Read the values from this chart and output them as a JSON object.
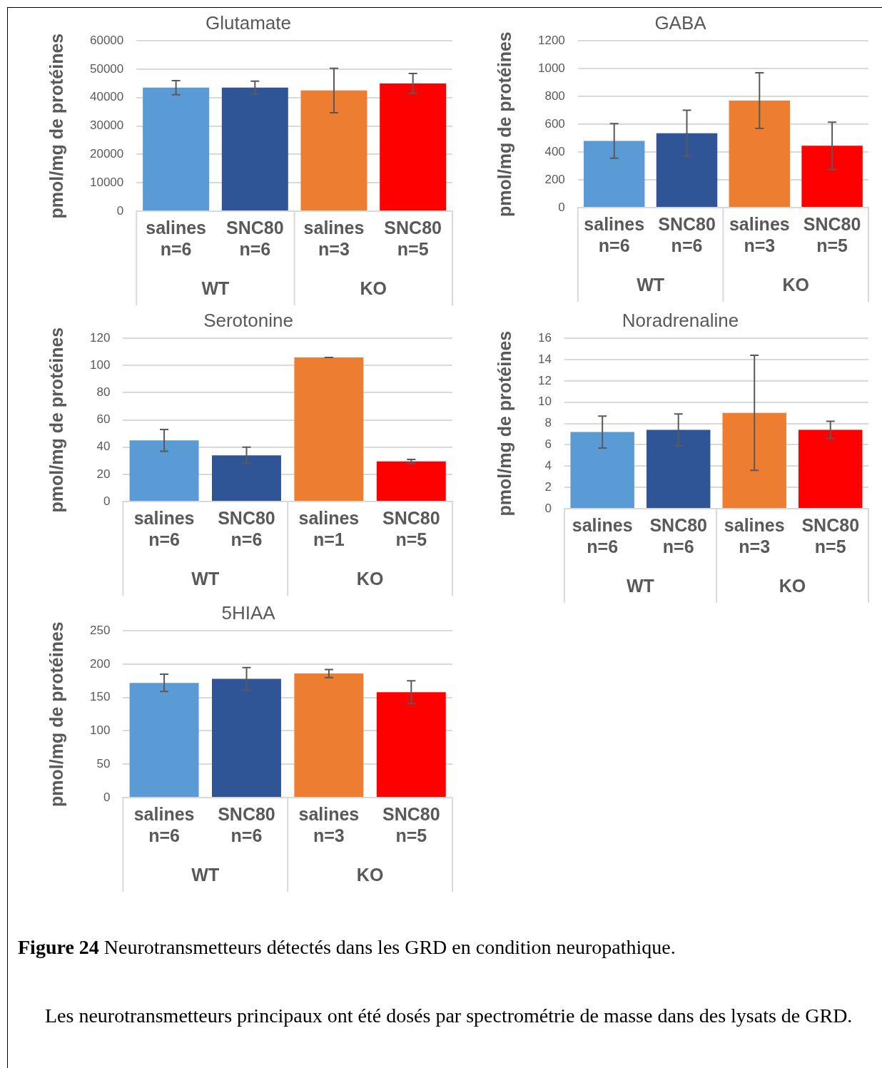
{
  "chart_data": [
    {
      "type": "bar",
      "title": "Glutamate",
      "ylabel": "pmol/mg de protéines",
      "categories": [
        "salines\nn=6",
        "SNC80\nn=6",
        "salines\nn=3",
        "SNC80\nn=5"
      ],
      "values": [
        43500,
        43500,
        42500,
        45000
      ],
      "errors": [
        2500,
        2300,
        7800,
        3500
      ],
      "colors": [
        "#5b9bd5",
        "#2f5597",
        "#ed7d31",
        "#ff0000"
      ],
      "ylim": [
        0,
        60000
      ],
      "yticks": [
        0,
        10000,
        20000,
        30000,
        40000,
        50000,
        60000
      ],
      "grid": "y",
      "annotations": [
        "WT",
        "KO"
      ]
    },
    {
      "type": "bar",
      "title": "GABA",
      "ylabel": "pmol/mg de protéines",
      "categories": [
        "salines\nn=6",
        "SNC80\nn=6",
        "salines\nn=3",
        "SNC80\nn=5"
      ],
      "values": [
        480,
        535,
        770,
        445
      ],
      "errors": [
        125,
        165,
        200,
        170
      ],
      "colors": [
        "#5b9bd5",
        "#2f5597",
        "#ed7d31",
        "#ff0000"
      ],
      "ylim": [
        0,
        1200
      ],
      "yticks": [
        0,
        200,
        400,
        600,
        800,
        1000,
        1200
      ],
      "grid": "y",
      "annotations": [
        "WT",
        "KO"
      ]
    },
    {
      "type": "bar",
      "title": "Serotonine",
      "ylabel": "pmol/mg de protéines",
      "categories": [
        "salines\nn=6",
        "SNC80\nn=6",
        "salines\nn=1",
        "SNC80\nn=5"
      ],
      "values": [
        45,
        34,
        106,
        29.5
      ],
      "errors": [
        8,
        6,
        0,
        1.5
      ],
      "colors": [
        "#5b9bd5",
        "#2f5597",
        "#ed7d31",
        "#ff0000"
      ],
      "ylim": [
        0,
        120
      ],
      "yticks": [
        0,
        20,
        40,
        60,
        80,
        100,
        120
      ],
      "grid": "y",
      "annotations": [
        "WT",
        "KO"
      ]
    },
    {
      "type": "bar",
      "title": "Noradrenaline",
      "ylabel": "pmol/mg de protéines",
      "categories": [
        "salines\nn=6",
        "SNC80\nn=6",
        "salines\nn=3",
        "SNC80\nn=5"
      ],
      "values": [
        7.2,
        7.4,
        9.0,
        7.4
      ],
      "errors": [
        1.5,
        1.5,
        5.4,
        0.8
      ],
      "colors": [
        "#5b9bd5",
        "#2f5597",
        "#ed7d31",
        "#ff0000"
      ],
      "ylim": [
        0,
        16
      ],
      "yticks": [
        0,
        2,
        4,
        6,
        8,
        10,
        12,
        14,
        16
      ],
      "grid": "y",
      "annotations": [
        "WT",
        "KO"
      ]
    },
    {
      "type": "bar",
      "title": "5HIAA",
      "ylabel": "pmol/mg de protéines",
      "categories": [
        "salines\nn=6",
        "SNC80\nn=6",
        "salines\nn=3",
        "SNC80\nn=5"
      ],
      "values": [
        172,
        178,
        186,
        158
      ],
      "errors": [
        13,
        17,
        6,
        17
      ],
      "colors": [
        "#5b9bd5",
        "#2f5597",
        "#ed7d31",
        "#ff0000"
      ],
      "ylim": [
        0,
        250
      ],
      "yticks": [
        0,
        50,
        100,
        150,
        200,
        250
      ],
      "grid": "y",
      "annotations": [
        "WT",
        "KO"
      ]
    },
    {
      "type": "other",
      "annotations": [
        "Figure 24 Neurotransmetteurs détectés dans les GRD en condition neuropathique.",
        "Les neurotransmetteurs principaux ont été dosés par spectrométrie de masse dans des lysats de GRD."
      ]
    }
  ]
}
